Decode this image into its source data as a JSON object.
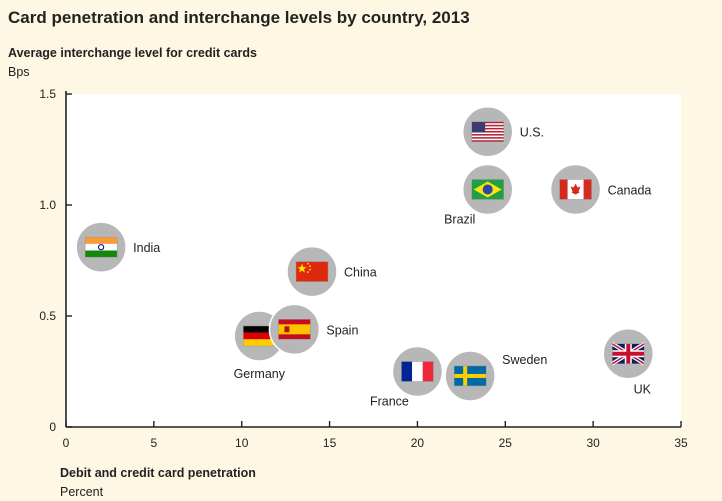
{
  "chart_data": {
    "type": "scatter",
    "title": "Card penetration and interchange levels by country, 2013",
    "ylabel": "Average interchange level for credit cards",
    "yunit": "Bps",
    "xlabel": "Debit and credit card penetration",
    "xunit": "Percent",
    "xlim": [
      0,
      35
    ],
    "ylim": [
      0,
      1.5
    ],
    "xticks": [
      0,
      5,
      10,
      15,
      20,
      25,
      30,
      35
    ],
    "xtick_labels": [
      "0",
      "5",
      "10",
      "15",
      "20",
      "25",
      "30",
      "35"
    ],
    "yticks": [
      0,
      0.5,
      1.0,
      1.5
    ],
    "ytick_labels": [
      "0",
      "0.5",
      "1.0",
      "1.5"
    ],
    "grid": false,
    "background_color": "#fdf7e3",
    "plot_background_color": "#ffffff",
    "marker_color": "#b7b7b7",
    "points": [
      {
        "label": "U.S.",
        "x": 24,
        "y": 1.33,
        "flag": "us-flag",
        "label_side": "right"
      },
      {
        "label": "Brazil",
        "x": 24,
        "y": 1.07,
        "flag": "brazil-flag",
        "label_side": "below-left"
      },
      {
        "label": "Canada",
        "x": 29,
        "y": 1.07,
        "flag": "canada-flag",
        "label_side": "right"
      },
      {
        "label": "India",
        "x": 2,
        "y": 0.81,
        "flag": "india-flag",
        "label_side": "right"
      },
      {
        "label": "China",
        "x": 14,
        "y": 0.7,
        "flag": "china-flag",
        "label_side": "right"
      },
      {
        "label": "Germany",
        "x": 11,
        "y": 0.41,
        "flag": "germany-flag",
        "label_side": "below"
      },
      {
        "label": "Spain",
        "x": 13,
        "y": 0.44,
        "flag": "spain-flag",
        "label_side": "right"
      },
      {
        "label": "France",
        "x": 20,
        "y": 0.25,
        "flag": "france-flag",
        "label_side": "below-left"
      },
      {
        "label": "Sweden",
        "x": 23,
        "y": 0.23,
        "flag": "sweden-flag",
        "label_side": "above-right"
      },
      {
        "label": "UK",
        "x": 32,
        "y": 0.33,
        "flag": "uk-flag",
        "label_side": "below-right"
      }
    ]
  }
}
